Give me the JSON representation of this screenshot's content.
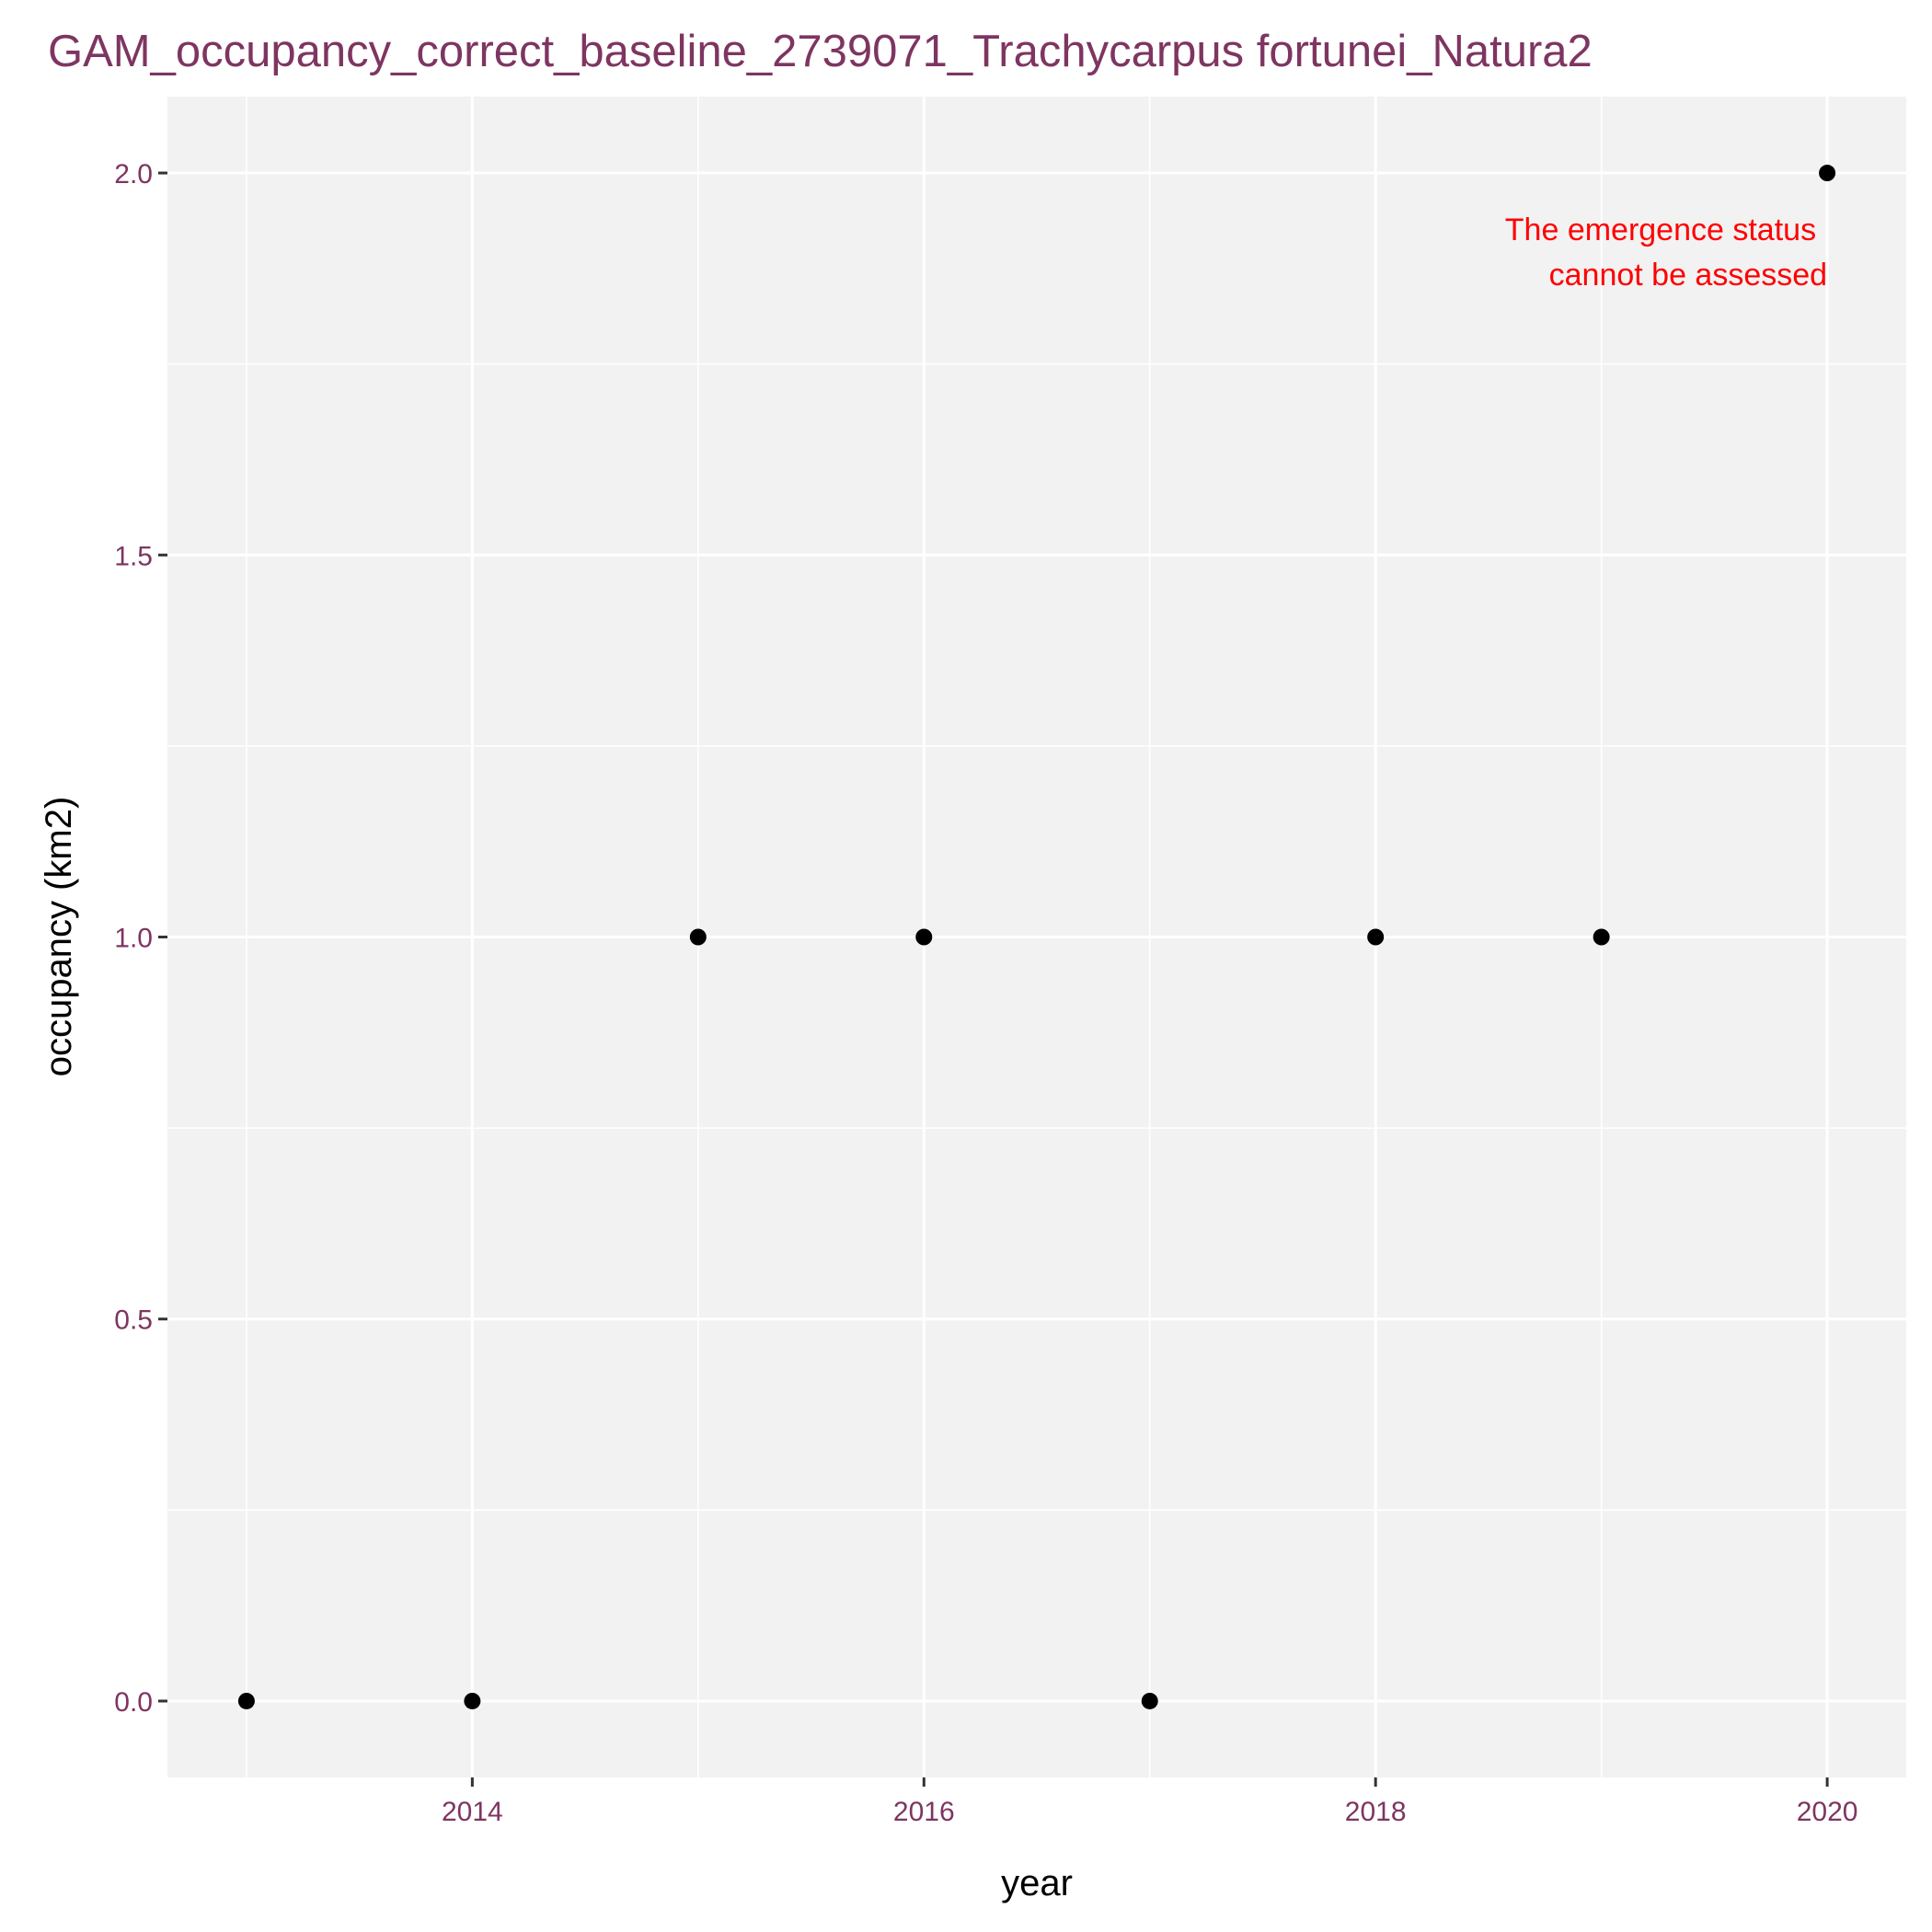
{
  "colors": {
    "title": "#7E3561",
    "tick_label": "#7E3561",
    "axis_title": "#000000",
    "panel_background": "#F2F2F2",
    "grid": "#FFFFFF",
    "point": "#000000",
    "annotation": "#FF0000"
  },
  "chart_data": {
    "type": "scatter",
    "title": "GAM_occupancy_correct_baseline_2739071_Trachycarpus fortunei_Natura2",
    "xlabel": "year",
    "ylabel": "occupancy (km2)",
    "x": [
      2013,
      2014,
      2015,
      2016,
      2017,
      2018,
      2019,
      2020
    ],
    "y": [
      0,
      0,
      1,
      1,
      0,
      1,
      1,
      2
    ],
    "xlim": [
      2012.65,
      2020.35
    ],
    "ylim": [
      -0.1,
      2.1
    ],
    "x_ticks": [
      2014,
      2016,
      2018,
      2020
    ],
    "x_tick_labels": [
      "2014",
      "2016",
      "2018",
      "2020"
    ],
    "y_ticks": [
      0,
      0.5,
      1,
      1.5,
      2
    ],
    "y_tick_labels": [
      "0.0",
      "0.5",
      "1.0",
      "1.5",
      "2.0"
    ],
    "x_minor_ticks": [
      2013,
      2015,
      2017,
      2019
    ],
    "y_minor_ticks": [
      0.25,
      0.75,
      1.25,
      1.75
    ],
    "grid": true,
    "legend": "none",
    "annotation": {
      "lines": [
        "The emergence status",
        "cannot be assessed"
      ],
      "x": 2020,
      "y": 1.9
    }
  }
}
